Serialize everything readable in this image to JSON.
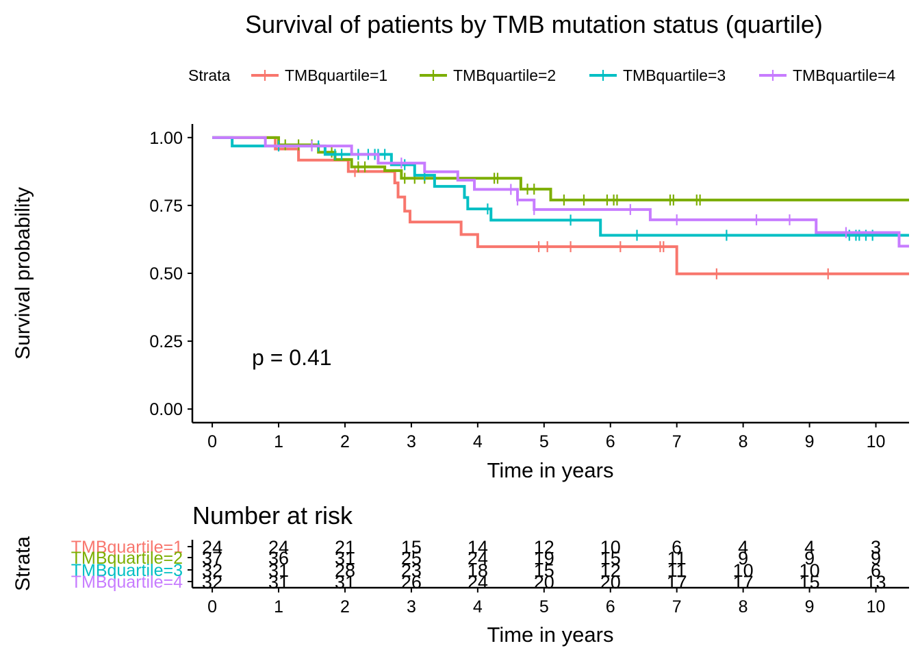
{
  "chart_data": [
    {
      "type": "line",
      "title": "Survival of patients by TMB mutation status (quartile)",
      "xlabel": "Time in years",
      "ylabel": "Survival probability",
      "xlim": [
        -0.3,
        10.5
      ],
      "ylim": [
        -0.05,
        1.05
      ],
      "x_ticks": [
        0,
        1,
        2,
        3,
        4,
        5,
        6,
        7,
        8,
        9,
        10
      ],
      "y_ticks": [
        "0.00",
        "0.25",
        "0.50",
        "0.75",
        "1.00"
      ],
      "grid": false,
      "legend_title": "Strata",
      "legend_position": "top",
      "annotation": "p = 0.41",
      "series": [
        {
          "name": "TMBquartile=1",
          "color": "#F8766D",
          "steps": [
            [
              0,
              1.0
            ],
            [
              0.95,
              0.958
            ],
            [
              1.3,
              0.917
            ],
            [
              2.05,
              0.875
            ],
            [
              2.75,
              0.833
            ],
            [
              2.8,
              0.781
            ],
            [
              2.9,
              0.729
            ],
            [
              2.98,
              0.689
            ],
            [
              3.75,
              0.643
            ],
            [
              4.0,
              0.598
            ],
            [
              7.0,
              0.498
            ]
          ],
          "end_x": 10.5,
          "censor_times": [
            2.15,
            4.92,
            5.05,
            5.4,
            6.15,
            6.75,
            6.8,
            7.6,
            9.28
          ]
        },
        {
          "name": "TMBquartile=2",
          "color": "#7CAE00",
          "steps": [
            [
              0,
              1.0
            ],
            [
              1.0,
              0.973
            ],
            [
              1.6,
              0.946
            ],
            [
              1.85,
              0.919
            ],
            [
              2.1,
              0.892
            ],
            [
              2.6,
              0.878
            ],
            [
              2.85,
              0.85
            ],
            [
              4.65,
              0.81
            ],
            [
              5.1,
              0.77
            ]
          ],
          "end_x": 10.5,
          "censor_times": [
            1.1,
            1.3,
            1.5,
            1.8,
            2.2,
            2.3,
            2.9,
            3.05,
            3.2,
            4.25,
            4.3,
            4.75,
            4.85,
            5.3,
            5.6,
            5.95,
            6.05,
            6.1,
            6.9,
            6.95,
            7.3,
            7.35
          ]
        },
        {
          "name": "TMBquartile=3",
          "color": "#00BFC4",
          "steps": [
            [
              0,
              1.0
            ],
            [
              0.3,
              0.969
            ],
            [
              1.7,
              0.938
            ],
            [
              2.7,
              0.9
            ],
            [
              3.05,
              0.861
            ],
            [
              3.35,
              0.82
            ],
            [
              3.8,
              0.779
            ],
            [
              3.85,
              0.737
            ],
            [
              4.2,
              0.696
            ],
            [
              5.85,
              0.64
            ]
          ],
          "end_x": 10.5,
          "censor_times": [
            1.0,
            1.6,
            1.85,
            1.95,
            2.2,
            2.35,
            2.45,
            2.5,
            2.6,
            2.9,
            3.2,
            4.15,
            5.4,
            6.4,
            7.75,
            9.6,
            9.7,
            9.75,
            9.85,
            9.95
          ]
        },
        {
          "name": "TMBquartile=4",
          "color": "#C77CFF",
          "steps": [
            [
              0,
              1.0
            ],
            [
              0.8,
              0.969
            ],
            [
              2.1,
              0.938
            ],
            [
              2.5,
              0.906
            ],
            [
              3.2,
              0.874
            ],
            [
              3.7,
              0.843
            ],
            [
              3.95,
              0.809
            ],
            [
              4.6,
              0.77
            ],
            [
              4.85,
              0.735
            ],
            [
              6.6,
              0.697
            ],
            [
              9.1,
              0.65
            ],
            [
              10.35,
              0.6
            ]
          ],
          "end_x": 10.5,
          "censor_times": [
            1.5,
            2.85,
            4.5,
            4.6,
            4.85,
            6.3,
            7.0,
            8.2,
            8.7,
            9.55
          ]
        }
      ]
    },
    {
      "type": "table",
      "title": "Number at risk",
      "xlabel": "Time in years",
      "ylabel": "Strata",
      "times": [
        0,
        1,
        2,
        3,
        4,
        5,
        6,
        7,
        8,
        9,
        10
      ],
      "rows": [
        {
          "name": "TMBquartile=1",
          "color": "#F8766D",
          "values": [
            24,
            24,
            21,
            15,
            14,
            12,
            10,
            6,
            4,
            4,
            3
          ]
        },
        {
          "name": "TMBquartile=2",
          "color": "#7CAE00",
          "values": [
            37,
            36,
            31,
            25,
            24,
            19,
            15,
            11,
            9,
            9,
            9
          ]
        },
        {
          "name": "TMBquartile=3",
          "color": "#00BFC4",
          "values": [
            32,
            31,
            28,
            23,
            18,
            15,
            12,
            11,
            10,
            10,
            6
          ]
        },
        {
          "name": "TMBquartile=4",
          "color": "#C77CFF",
          "values": [
            32,
            31,
            31,
            26,
            24,
            20,
            20,
            17,
            17,
            15,
            13
          ]
        }
      ]
    }
  ]
}
